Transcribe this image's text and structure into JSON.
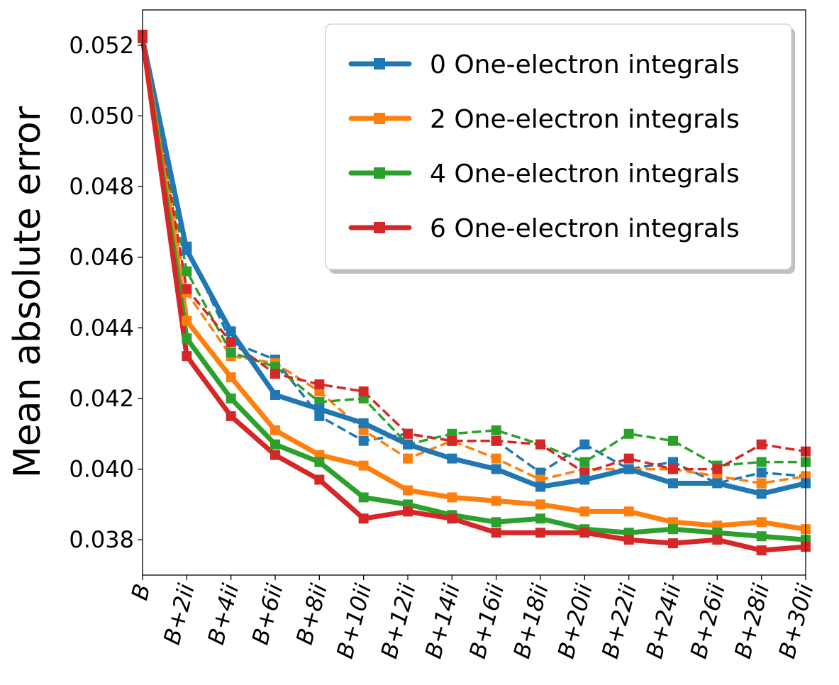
{
  "chart_data": {
    "type": "line",
    "title": "",
    "xlabel": "",
    "ylabel": "Mean absolute error",
    "categories": [
      "B",
      "B+2ii",
      "B+4ii",
      "B+6ii",
      "B+8ii",
      "B+10ii",
      "B+12ii",
      "B+14ii",
      "B+16ii",
      "B+18ii",
      "B+20ii",
      "B+22ii",
      "B+24ii",
      "B+26ii",
      "B+28ii",
      "B+30ii"
    ],
    "ylim": [
      0.037,
      0.053
    ],
    "yticks": [
      0.038,
      0.04,
      0.042,
      0.044,
      0.046,
      0.048,
      0.05,
      0.052
    ],
    "ytick_labels": [
      "0.038",
      "0.040",
      "0.042",
      "0.044",
      "0.046",
      "0.048",
      "0.050",
      "0.052"
    ],
    "grid": false,
    "legend_position": "top-right",
    "series": [
      {
        "name": "0 One-electron integrals",
        "color": "#1f77b4",
        "solid": [
          0.0522,
          0.0462,
          0.0439,
          0.0421,
          0.0417,
          0.0413,
          0.0407,
          0.0403,
          0.04,
          0.0395,
          0.0397,
          0.04,
          0.0396,
          0.0396,
          0.0393,
          0.0396
        ],
        "dashed": [
          0.0522,
          0.0463,
          0.0436,
          0.0431,
          0.0415,
          0.0408,
          0.041,
          0.0408,
          0.0408,
          0.0399,
          0.0407,
          0.04,
          0.0402,
          0.0396,
          0.0399,
          0.0398
        ]
      },
      {
        "name": "2 One-electron integrals",
        "color": "#ff7f0e",
        "solid": [
          0.0522,
          0.0442,
          0.0426,
          0.0411,
          0.0404,
          0.0401,
          0.0394,
          0.0392,
          0.0391,
          0.039,
          0.0388,
          0.0388,
          0.0385,
          0.0384,
          0.0385,
          0.0383
        ],
        "dashed": [
          0.0522,
          0.045,
          0.0432,
          0.043,
          0.0422,
          0.0411,
          0.0403,
          0.0408,
          0.0403,
          0.0397,
          0.04,
          0.04,
          0.04,
          0.0398,
          0.0396,
          0.0398
        ]
      },
      {
        "name": "4 One-electron integrals",
        "color": "#2ca02c",
        "solid": [
          0.0522,
          0.0437,
          0.042,
          0.0407,
          0.0402,
          0.0392,
          0.039,
          0.0387,
          0.0385,
          0.0386,
          0.0383,
          0.0382,
          0.0383,
          0.0382,
          0.0381,
          0.038
        ],
        "dashed": [
          0.0522,
          0.0456,
          0.0433,
          0.0429,
          0.0419,
          0.042,
          0.0407,
          0.041,
          0.0411,
          0.0407,
          0.0402,
          0.041,
          0.0408,
          0.0401,
          0.0402,
          0.0402
        ]
      },
      {
        "name": "6 One-electron integrals",
        "color": "#d62728",
        "solid": [
          0.0522,
          0.0432,
          0.0415,
          0.0404,
          0.0397,
          0.0386,
          0.0388,
          0.0386,
          0.0382,
          0.0382,
          0.0382,
          0.038,
          0.0379,
          0.038,
          0.0377,
          0.0378
        ],
        "dashed": [
          0.0523,
          0.0451,
          0.0436,
          0.0427,
          0.0424,
          0.0422,
          0.041,
          0.0408,
          0.0408,
          0.0407,
          0.0399,
          0.0403,
          0.04,
          0.04,
          0.0407,
          0.0405
        ]
      }
    ]
  }
}
